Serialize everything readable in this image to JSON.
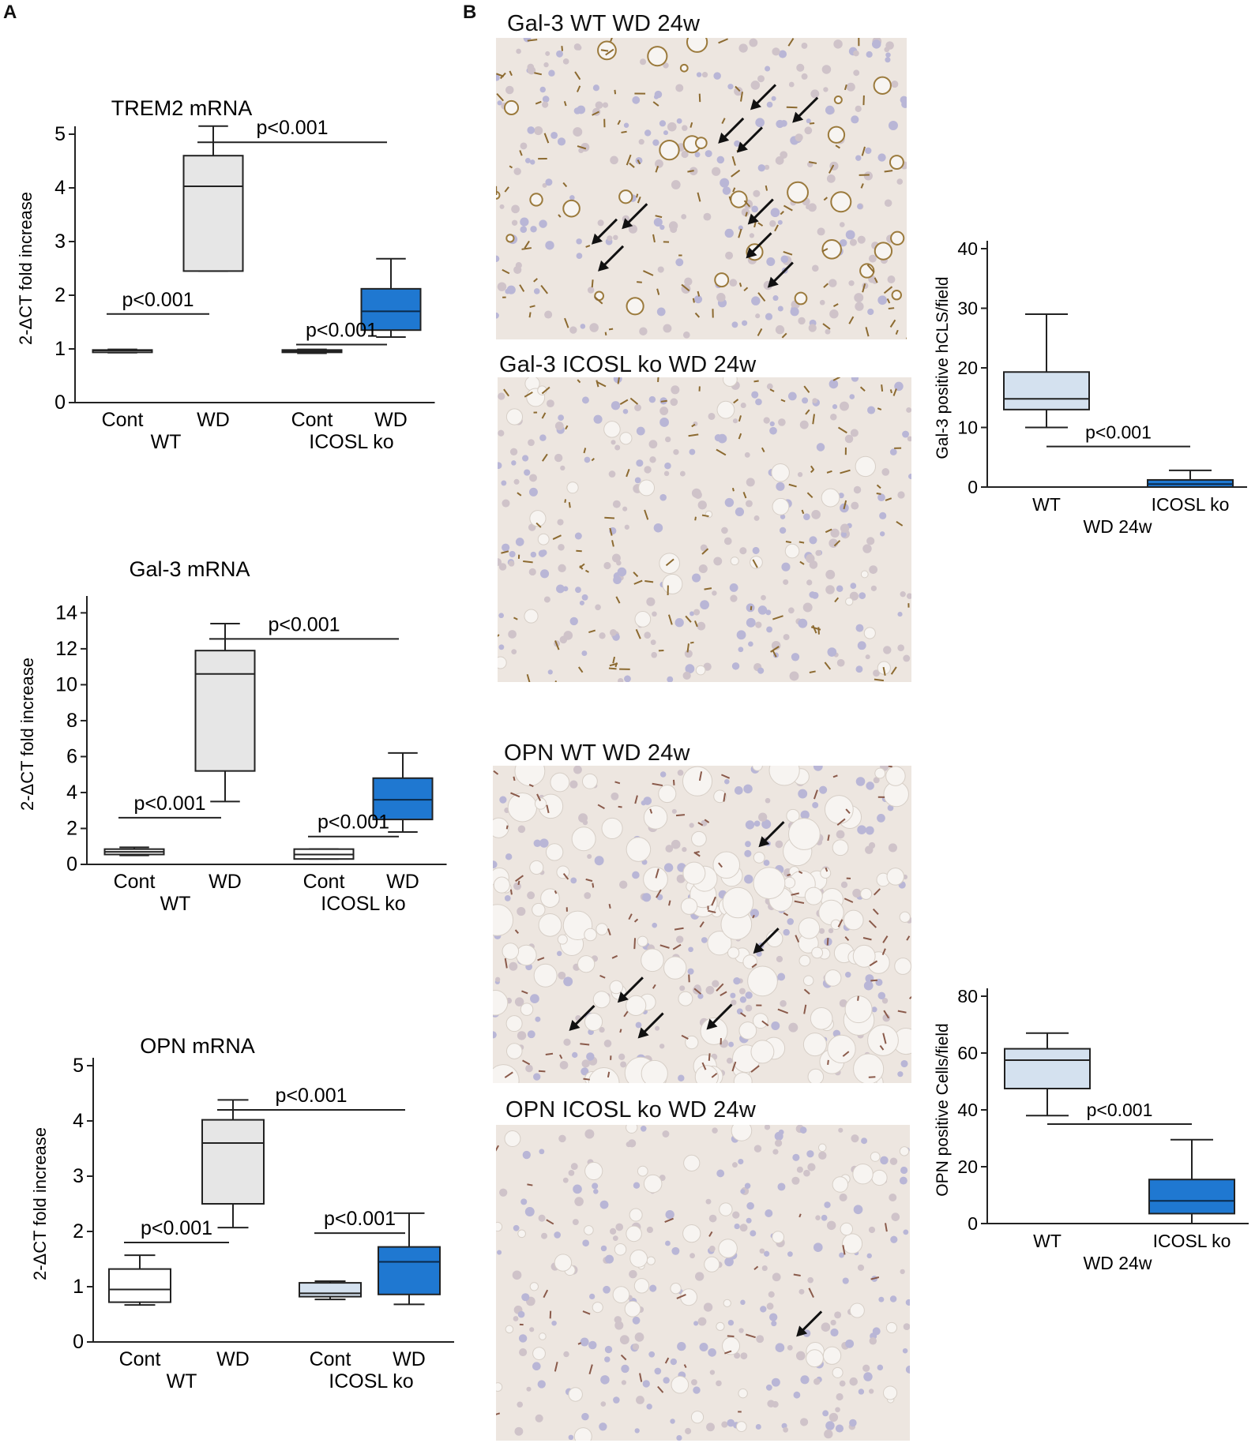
{
  "panels": {
    "a": "A",
    "b": "B"
  },
  "micrographs": [
    {
      "title": "Gal-3 WT WD 24w"
    },
    {
      "title": "Gal-3 ICOSL ko  WD 24w"
    },
    {
      "title": "OPN WT WD 24w"
    },
    {
      "title": "OPN ICOSL ko  WD 24w"
    }
  ],
  "colors": {
    "grey_box": "#e6e6e6",
    "light_blue_box": "#d4e1ef",
    "blue_box": "#1f78d1",
    "white_box": "#ffffff"
  },
  "chart_data": [
    {
      "type": "boxplot",
      "title": "TREM2 mRNA",
      "ylabel": "2-ΔCT fold increase",
      "ylim": [
        0,
        5
      ],
      "yticks": [
        0,
        1,
        2,
        3,
        4,
        5
      ],
      "categories": [
        "Cont",
        "WD",
        "Cont",
        "WD"
      ],
      "groups": [
        "WT",
        "ICOSL ko"
      ],
      "series": [
        {
          "category": "Cont",
          "group": "WT",
          "min": 0.93,
          "q1": 0.95,
          "median": 0.97,
          "q3": 0.98,
          "max": 0.99,
          "color": "white"
        },
        {
          "category": "WD",
          "group": "WT",
          "min": 2.45,
          "q1": 2.45,
          "median": 4.03,
          "q3": 4.6,
          "max": 5.15,
          "color": "grey"
        },
        {
          "category": "Cont",
          "group": "ICOSL ko",
          "min": 0.92,
          "q1": 0.94,
          "median": 0.96,
          "q3": 0.98,
          "max": 0.99,
          "color": "white"
        },
        {
          "category": "WD",
          "group": "ICOSL ko",
          "min": 1.22,
          "q1": 1.35,
          "median": 1.7,
          "q3": 2.12,
          "max": 2.68,
          "color": "blue"
        }
      ],
      "annotations": [
        {
          "text": "p<0.001",
          "from": 0,
          "to": 1,
          "y": 1.65
        },
        {
          "text": "p<0.001",
          "from": 1,
          "to": 3,
          "y": 4.85
        },
        {
          "text": "p<0.001",
          "from": 2,
          "to": 3,
          "y": 1.08
        }
      ]
    },
    {
      "type": "boxplot",
      "title": "Gal-3 mRNA",
      "ylabel": "2-ΔCT fold increase",
      "ylim": [
        0,
        14.5
      ],
      "yticks": [
        0,
        2,
        4,
        6,
        8,
        10,
        12,
        14
      ],
      "categories": [
        "Cont",
        "WD",
        "Cont",
        "WD"
      ],
      "groups": [
        "WT",
        "ICOSL ko"
      ],
      "series": [
        {
          "category": "Cont",
          "group": "WT",
          "min": 0.5,
          "q1": 0.55,
          "median": 0.7,
          "q3": 0.85,
          "max": 0.95,
          "color": "white"
        },
        {
          "category": "WD",
          "group": "WT",
          "min": 3.5,
          "q1": 5.2,
          "median": 10.6,
          "q3": 11.9,
          "max": 13.4,
          "color": "grey"
        },
        {
          "category": "Cont",
          "group": "ICOSL ko",
          "min": 0.3,
          "q1": 0.3,
          "median": 0.55,
          "q3": 0.85,
          "max": 0.85,
          "color": "white"
        },
        {
          "category": "WD",
          "group": "ICOSL ko",
          "min": 1.8,
          "q1": 2.5,
          "median": 3.6,
          "q3": 4.8,
          "max": 6.2,
          "color": "blue"
        }
      ],
      "annotations": [
        {
          "text": "p<0.001",
          "from": 0,
          "to": 1,
          "y": 2.6
        },
        {
          "text": "p<0.001",
          "from": 1,
          "to": 3,
          "y": 12.55
        },
        {
          "text": "p<0.001",
          "from": 2,
          "to": 3,
          "y": 1.55
        }
      ]
    },
    {
      "type": "boxplot",
      "title": "OPN mRNA",
      "ylabel": "2-ΔCT fold increase",
      "ylim": [
        0,
        5
      ],
      "yticks": [
        0,
        1,
        2,
        3,
        4,
        5
      ],
      "categories": [
        "Cont",
        "WD",
        "Cont",
        "WD"
      ],
      "groups": [
        "WT",
        "ICOSL ko"
      ],
      "series": [
        {
          "category": "Cont",
          "group": "WT",
          "min": 0.67,
          "q1": 0.72,
          "median": 0.95,
          "q3": 1.32,
          "max": 1.57,
          "color": "white"
        },
        {
          "category": "WD",
          "group": "WT",
          "min": 2.07,
          "q1": 2.5,
          "median": 3.6,
          "q3": 4.02,
          "max": 4.38,
          "color": "grey"
        },
        {
          "category": "Cont",
          "group": "ICOSL ko",
          "min": 0.77,
          "q1": 0.82,
          "median": 0.88,
          "q3": 1.07,
          "max": 1.1,
          "color": "light_blue"
        },
        {
          "category": "WD",
          "group": "ICOSL ko",
          "min": 0.68,
          "q1": 0.86,
          "median": 1.45,
          "q3": 1.72,
          "max": 2.33,
          "color": "blue"
        }
      ],
      "annotations": [
        {
          "text": "p<0.001",
          "from": 0,
          "to": 1,
          "y": 1.8
        },
        {
          "text": "p<0.001",
          "from": 1,
          "to": 3,
          "y": 4.2
        },
        {
          "text": "p<0.001",
          "from": 2,
          "to": 3,
          "y": 1.97
        }
      ]
    },
    {
      "type": "boxplot",
      "title": "",
      "ylabel": "Gal-3 positive hCLS/field",
      "ylim": [
        0,
        40
      ],
      "yticks": [
        0,
        10,
        20,
        30,
        40
      ],
      "categories": [
        "WT",
        "ICOSL ko"
      ],
      "groups": [
        "WD 24w"
      ],
      "series": [
        {
          "category": "WT",
          "group": "WD 24w",
          "min": 10,
          "q1": 13,
          "median": 14.8,
          "q3": 19.3,
          "max": 29,
          "color": "light_blue"
        },
        {
          "category": "ICOSL ko",
          "group": "WD 24w",
          "min": 0,
          "q1": 0,
          "median": 0.5,
          "q3": 1.2,
          "max": 2.8,
          "color": "blue"
        }
      ],
      "annotations": [
        {
          "text": "p<0.001",
          "from": 0,
          "to": 1,
          "y": 6.8
        }
      ]
    },
    {
      "type": "boxplot",
      "title": "",
      "ylabel": "OPN positive Cells/field",
      "ylim": [
        0,
        80
      ],
      "yticks": [
        0,
        20,
        40,
        60,
        80
      ],
      "categories": [
        "WT",
        "ICOSL ko"
      ],
      "groups": [
        "WD 24w"
      ],
      "series": [
        {
          "category": "WT",
          "group": "WD 24w",
          "min": 38,
          "q1": 47.5,
          "median": 57.5,
          "q3": 61.5,
          "max": 67,
          "color": "light_blue"
        },
        {
          "category": "ICOSL ko",
          "group": "WD 24w",
          "min": 0,
          "q1": 3.5,
          "median": 8,
          "q3": 15.5,
          "max": 29.5,
          "color": "blue"
        }
      ],
      "annotations": [
        {
          "text": "p<0.001",
          "from": 0,
          "to": 1,
          "y": 35
        }
      ]
    }
  ]
}
